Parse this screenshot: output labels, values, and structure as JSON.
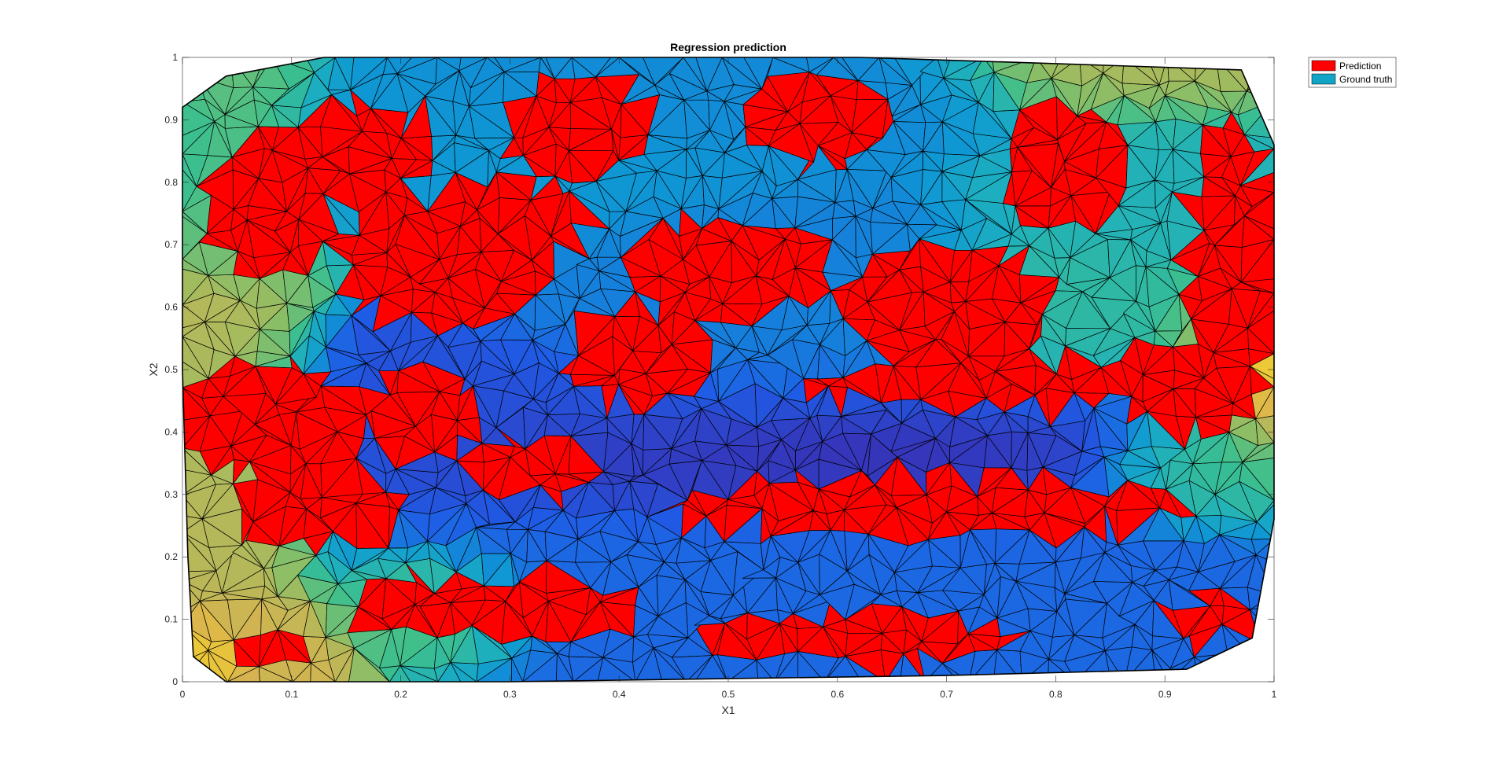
{
  "chart_data": {
    "type": "heatmap",
    "subtype": "triangulated-surface",
    "title": "Regression prediction",
    "xlabel": "X1",
    "ylabel": "X2",
    "xlim": [
      0,
      1
    ],
    "ylim": [
      0,
      1
    ],
    "xticks": [
      "0",
      "0.1",
      "0.2",
      "0.3",
      "0.4",
      "0.5",
      "0.6",
      "0.7",
      "0.8",
      "0.9",
      "1"
    ],
    "yticks": [
      "0",
      "0.1",
      "0.2",
      "0.3",
      "0.4",
      "0.5",
      "0.6",
      "0.7",
      "0.8",
      "0.9",
      "1"
    ],
    "grid": false,
    "legend_position": "top-right outside",
    "legend": [
      {
        "name": "Prediction",
        "color": "#ff0000"
      },
      {
        "name": "Ground truth",
        "color": "#10a5c6"
      }
    ],
    "colors": {
      "prediction": "#ff0000",
      "colormap": [
        "#3e26a8",
        "#1f5ce6",
        "#0f98d3",
        "#1caec0",
        "#3cbf8e",
        "#8bbe66",
        "#d9b34f",
        "#f9d826",
        "#f9fb0e"
      ],
      "mesh_edge": "#000000",
      "axes": "#262626"
    },
    "hull": [
      [
        0.0,
        0.92
      ],
      [
        0.04,
        0.97
      ],
      [
        0.13,
        1.0
      ],
      [
        0.45,
        1.0
      ],
      [
        0.62,
        1.0
      ],
      [
        0.8,
        0.99
      ],
      [
        0.97,
        0.98
      ],
      [
        1.0,
        0.86
      ],
      [
        1.0,
        0.64
      ],
      [
        1.0,
        0.26
      ],
      [
        0.98,
        0.07
      ],
      [
        0.92,
        0.02
      ],
      [
        0.7,
        0.01
      ],
      [
        0.3,
        0.0
      ],
      [
        0.04,
        0.0
      ],
      [
        0.01,
        0.04
      ],
      [
        0.005,
        0.2
      ],
      [
        0.0,
        0.5
      ]
    ],
    "ground_truth_field": [
      {
        "x": 0.56,
        "y": 0.36,
        "level": 0.0,
        "rx": 0.18,
        "ry": 0.06
      },
      {
        "x": 0.65,
        "y": 0.37,
        "level": 0.0,
        "rx": 0.12,
        "ry": 0.04
      },
      {
        "x": 0.6,
        "y": 0.38,
        "level": 0.1,
        "rx": 0.3,
        "ry": 0.1
      },
      {
        "x": 0.55,
        "y": 0.6,
        "level": 0.2,
        "rx": 0.12,
        "ry": 0.12
      },
      {
        "x": 0.55,
        "y": 0.18,
        "level": 0.15,
        "rx": 0.25,
        "ry": 0.08
      },
      {
        "x": 0.28,
        "y": 0.85,
        "level": 0.25,
        "rx": 0.2,
        "ry": 0.08
      },
      {
        "x": 0.5,
        "y": 0.92,
        "level": 0.22,
        "rx": 0.2,
        "ry": 0.06
      },
      {
        "x": 0.8,
        "y": 0.58,
        "level": 0.45,
        "rx": 0.1,
        "ry": 0.08
      },
      {
        "x": 0.9,
        "y": 0.82,
        "level": 0.4,
        "rx": 0.1,
        "ry": 0.1
      },
      {
        "x": 0.02,
        "y": 0.2,
        "level": 0.7,
        "rx": 0.06,
        "ry": 0.2
      },
      {
        "x": 0.05,
        "y": 0.08,
        "level": 0.75,
        "rx": 0.06,
        "ry": 0.06
      },
      {
        "x": 0.02,
        "y": 0.05,
        "level": 0.95,
        "rx": 0.03,
        "ry": 0.04
      },
      {
        "x": 0.99,
        "y": 0.52,
        "level": 0.92,
        "rx": 0.03,
        "ry": 0.12
      },
      {
        "x": 0.97,
        "y": 0.5,
        "level": 0.75,
        "rx": 0.05,
        "ry": 0.1
      },
      {
        "x": 0.88,
        "y": 0.96,
        "level": 0.7,
        "rx": 0.1,
        "ry": 0.05
      },
      {
        "x": 0.06,
        "y": 0.85,
        "level": 0.6,
        "rx": 0.05,
        "ry": 0.1
      },
      {
        "x": 0.22,
        "y": 0.13,
        "level": 0.55,
        "rx": 0.06,
        "ry": 0.05
      },
      {
        "x": 0.93,
        "y": 0.35,
        "level": 0.55,
        "rx": 0.06,
        "ry": 0.06
      }
    ],
    "prediction_regions": [
      {
        "x": 0.08,
        "y": 0.42,
        "rx": 0.09,
        "ry": 0.09
      },
      {
        "x": 0.12,
        "y": 0.28,
        "rx": 0.08,
        "ry": 0.06
      },
      {
        "x": 0.08,
        "y": 0.76,
        "rx": 0.06,
        "ry": 0.12
      },
      {
        "x": 0.16,
        "y": 0.85,
        "rx": 0.07,
        "ry": 0.08
      },
      {
        "x": 0.24,
        "y": 0.68,
        "rx": 0.1,
        "ry": 0.11
      },
      {
        "x": 0.3,
        "y": 0.74,
        "rx": 0.08,
        "ry": 0.06
      },
      {
        "x": 0.22,
        "y": 0.43,
        "rx": 0.05,
        "ry": 0.07
      },
      {
        "x": 0.32,
        "y": 0.34,
        "rx": 0.06,
        "ry": 0.05
      },
      {
        "x": 0.36,
        "y": 0.89,
        "rx": 0.07,
        "ry": 0.08
      },
      {
        "x": 0.58,
        "y": 0.9,
        "rx": 0.07,
        "ry": 0.07
      },
      {
        "x": 0.5,
        "y": 0.66,
        "rx": 0.1,
        "ry": 0.08
      },
      {
        "x": 0.42,
        "y": 0.52,
        "rx": 0.07,
        "ry": 0.08
      },
      {
        "x": 0.7,
        "y": 0.6,
        "rx": 0.1,
        "ry": 0.1
      },
      {
        "x": 0.72,
        "y": 0.48,
        "rx": 0.15,
        "ry": 0.04
      },
      {
        "x": 0.81,
        "y": 0.82,
        "rx": 0.06,
        "ry": 0.1
      },
      {
        "x": 0.96,
        "y": 0.66,
        "rx": 0.04,
        "ry": 0.24
      },
      {
        "x": 0.92,
        "y": 0.47,
        "rx": 0.07,
        "ry": 0.07
      },
      {
        "x": 0.68,
        "y": 0.28,
        "rx": 0.24,
        "ry": 0.05
      },
      {
        "x": 0.28,
        "y": 0.12,
        "rx": 0.14,
        "ry": 0.05
      },
      {
        "x": 0.62,
        "y": 0.07,
        "rx": 0.14,
        "ry": 0.04
      },
      {
        "x": 0.94,
        "y": 0.1,
        "rx": 0.04,
        "ry": 0.04
      },
      {
        "x": 0.08,
        "y": 0.05,
        "rx": 0.04,
        "ry": 0.03
      }
    ]
  }
}
